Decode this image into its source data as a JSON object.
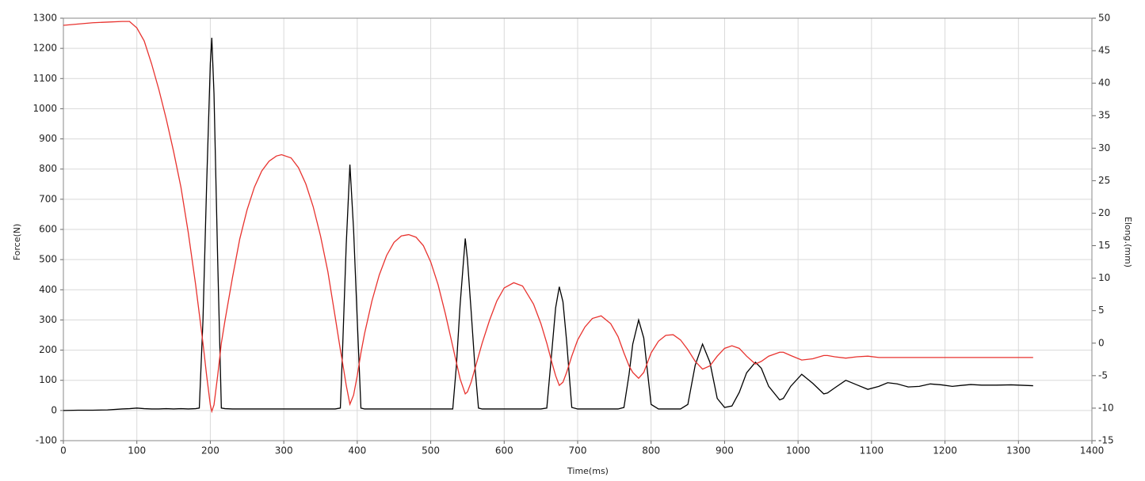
{
  "chart_data": {
    "type": "line",
    "x_label": "Time(ms)",
    "y_label": "Force(N)",
    "y2_label": "Elong.(mm)",
    "x": [
      0,
      20,
      40,
      60,
      80,
      90,
      100,
      110,
      120,
      130,
      140,
      150,
      160,
      170,
      180,
      185,
      190,
      195,
      200,
      202,
      205,
      210,
      215,
      220,
      230,
      240,
      250,
      260,
      270,
      280,
      290,
      297,
      310,
      320,
      330,
      340,
      350,
      360,
      370,
      377,
      380,
      385,
      390,
      395,
      400,
      405,
      410,
      420,
      430,
      440,
      450,
      460,
      470,
      480,
      490,
      500,
      510,
      520,
      530,
      535,
      540,
      547,
      550,
      555,
      560,
      565,
      570,
      580,
      590,
      600,
      613,
      625,
      640,
      650,
      658,
      665,
      670,
      675,
      680,
      685,
      692,
      700,
      710,
      720,
      732,
      745,
      755,
      763,
      770,
      775,
      783,
      790,
      795,
      800,
      810,
      820,
      830,
      840,
      850,
      860,
      870,
      880,
      890,
      900,
      910,
      920,
      930,
      942,
      950,
      960,
      975,
      980,
      990,
      1005,
      1020,
      1035,
      1040,
      1050,
      1065,
      1080,
      1095,
      1110,
      1122,
      1135,
      1150,
      1165,
      1180,
      1195,
      1210,
      1222,
      1235,
      1250,
      1270,
      1290,
      1320
    ],
    "series": [
      {
        "name": "Force",
        "color": "#000000",
        "values": [
          0,
          1,
          1,
          2,
          5,
          6,
          8,
          6,
          5,
          5,
          6,
          5,
          6,
          5,
          6,
          8,
          300,
          750,
          1150,
          1235,
          1050,
          500,
          8,
          6,
          5,
          5,
          5,
          5,
          5,
          5,
          5,
          5,
          5,
          5,
          5,
          5,
          5,
          5,
          5,
          8,
          200,
          550,
          815,
          600,
          300,
          8,
          5,
          5,
          5,
          5,
          5,
          5,
          5,
          5,
          5,
          5,
          5,
          5,
          5,
          150,
          350,
          570,
          500,
          330,
          150,
          8,
          5,
          5,
          5,
          5,
          5,
          5,
          5,
          5,
          8,
          200,
          340,
          410,
          360,
          230,
          10,
          5,
          5,
          5,
          5,
          5,
          5,
          10,
          120,
          220,
          300,
          240,
          130,
          20,
          5,
          5,
          5,
          5,
          20,
          150,
          220,
          160,
          40,
          10,
          15,
          60,
          125,
          160,
          140,
          80,
          35,
          40,
          80,
          120,
          90,
          55,
          58,
          75,
          100,
          85,
          70,
          80,
          92,
          88,
          78,
          80,
          88,
          85,
          80,
          83,
          86,
          84,
          84,
          85,
          82
        ]
      },
      {
        "name": "Elong",
        "color": "#e8332f",
        "axis": "y2",
        "values": [
          48.9,
          49.1,
          49.3,
          49.4,
          49.5,
          49.5,
          48.5,
          46.5,
          43,
          39,
          34.5,
          29.5,
          24,
          17,
          9,
          4.5,
          0,
          -5,
          -9.5,
          -10.5,
          -9.5,
          -5,
          0,
          3.5,
          10,
          16,
          20.5,
          24,
          26.5,
          28,
          28.8,
          29,
          28.5,
          27,
          24.5,
          21,
          16.5,
          11,
          4,
          -1,
          -3,
          -6.5,
          -9.4,
          -8,
          -5,
          -1.5,
          1.5,
          6.5,
          10.5,
          13.5,
          15.5,
          16.5,
          16.7,
          16.3,
          15,
          12.5,
          9,
          4.5,
          -0.5,
          -3,
          -5.5,
          -7.8,
          -7.5,
          -6,
          -4,
          -2,
          0,
          3.5,
          6.5,
          8.5,
          9.3,
          8.8,
          6,
          3,
          0,
          -3,
          -5,
          -6.5,
          -6,
          -4.5,
          -2,
          0.5,
          2.5,
          3.8,
          4.2,
          3,
          1,
          -1.5,
          -3.5,
          -4.5,
          -5.4,
          -4.5,
          -3,
          -1.5,
          0.3,
          1.2,
          1.3,
          0.5,
          -1,
          -2.8,
          -4,
          -3.5,
          -2,
          -0.8,
          -0.4,
          -0.8,
          -2,
          -3.2,
          -2.8,
          -2,
          -1.4,
          -1.4,
          -1.9,
          -2.6,
          -2.4,
          -1.9,
          -1.9,
          -2.1,
          -2.3,
          -2.1,
          -2,
          -2.2,
          -2.2,
          -2.2,
          -2.2,
          -2.2,
          -2.2,
          -2.2,
          -2.2,
          -2.2,
          -2.2,
          -2.2,
          -2.2,
          -2.2,
          -2.2
        ]
      }
    ],
    "xlim": [
      0,
      1400
    ],
    "xticks": [
      0,
      100,
      200,
      300,
      400,
      500,
      600,
      700,
      800,
      900,
      1000,
      1100,
      1200,
      1300,
      1400
    ],
    "ylim": [
      -100,
      1300
    ],
    "yticks": [
      -100,
      0,
      100,
      200,
      300,
      400,
      500,
      600,
      700,
      800,
      900,
      1000,
      1100,
      1200,
      1300
    ],
    "y2lim": [
      -15,
      50
    ],
    "y2ticks": [
      -15,
      -10,
      -5,
      0,
      5,
      10,
      15,
      20,
      25,
      30,
      35,
      40,
      45,
      50
    ],
    "grid": true
  }
}
